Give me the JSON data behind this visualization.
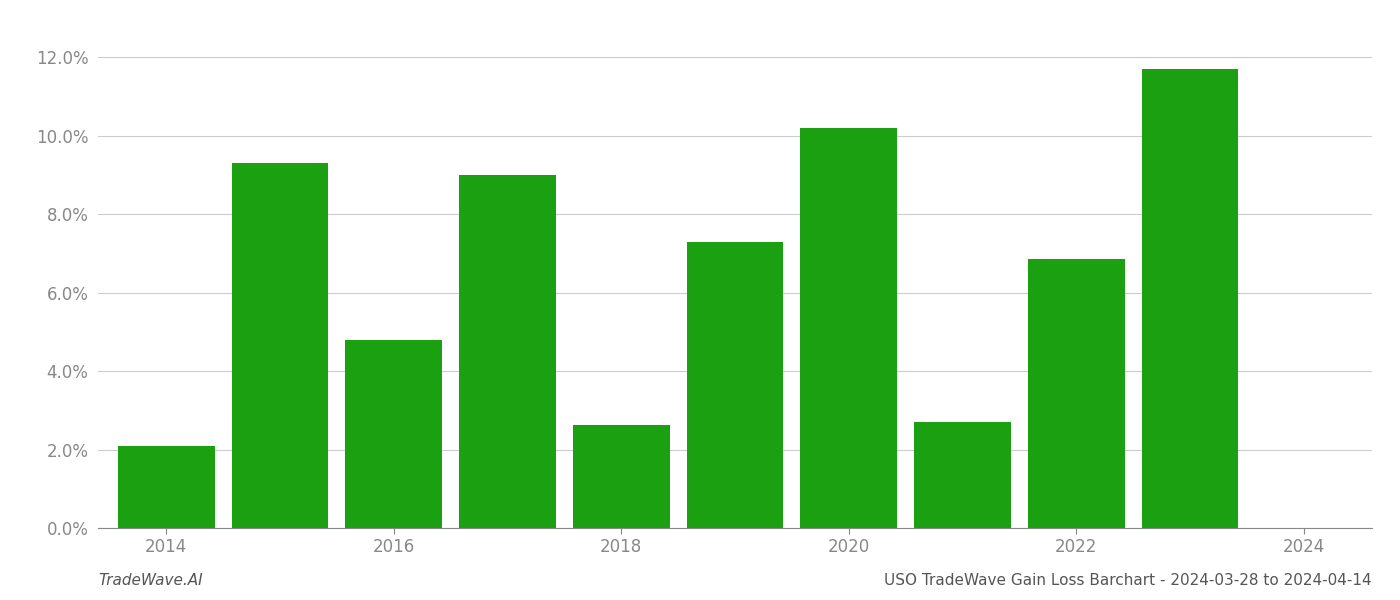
{
  "years": [
    2014,
    2015,
    2016,
    2017,
    2018,
    2019,
    2020,
    2021,
    2022,
    2023
  ],
  "values": [
    0.021,
    0.093,
    0.048,
    0.09,
    0.0262,
    0.073,
    0.102,
    0.027,
    0.0685,
    0.117
  ],
  "bar_color": "#1aa010",
  "background_color": "#ffffff",
  "grid_color": "#cccccc",
  "axis_color": "#888888",
  "tick_label_color": "#888888",
  "ylim": [
    0.0,
    0.13
  ],
  "yticks": [
    0.0,
    0.02,
    0.04,
    0.06,
    0.08,
    0.1,
    0.12
  ],
  "xticks": [
    2014,
    2016,
    2018,
    2020,
    2022,
    2024
  ],
  "xtick_labels": [
    "2014",
    "2016",
    "2018",
    "2020",
    "2022",
    "2024"
  ],
  "xlim": [
    2013.4,
    2024.6
  ],
  "xlabel_bottom_left": "TradeWave.AI",
  "xlabel_bottom_right": "USO TradeWave Gain Loss Barchart - 2024-03-28 to 2024-04-14",
  "bar_width": 0.85
}
